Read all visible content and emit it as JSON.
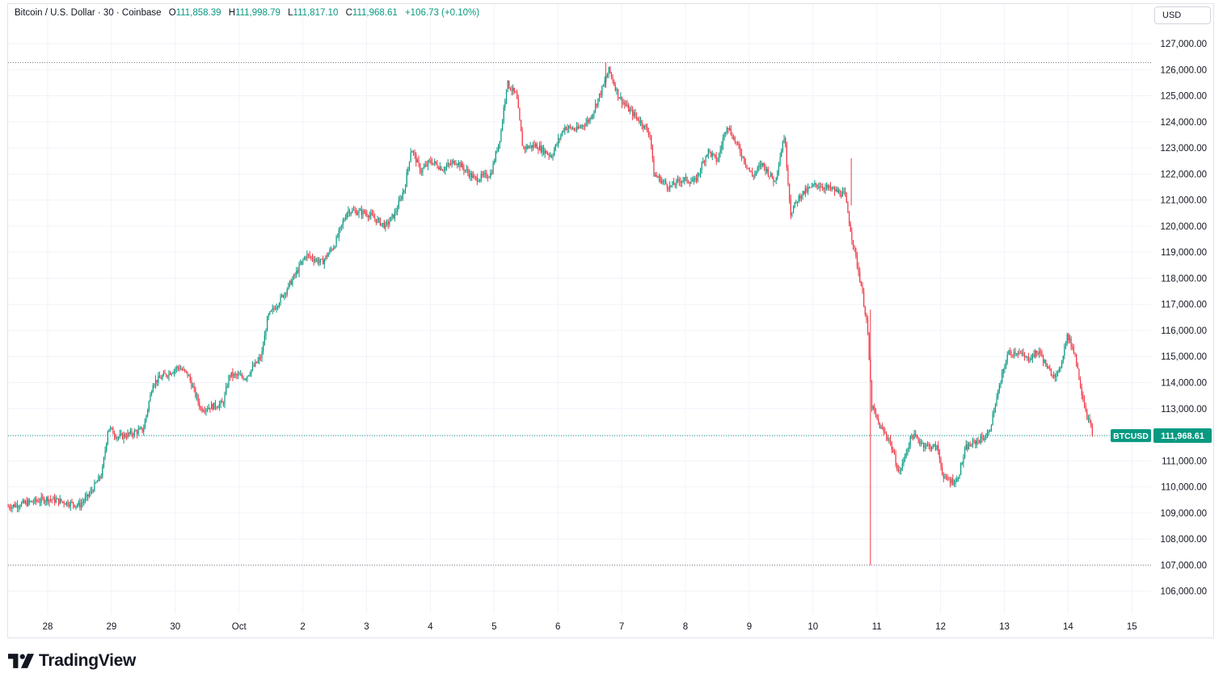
{
  "legend": {
    "symbol": "Bitcoin / U.S. Dollar · 30 · Coinbase",
    "o_label": "O",
    "o_value": "111,858.39",
    "h_label": "H",
    "h_value": "111,998.79",
    "l_label": "L",
    "l_value": "111,817.10",
    "c_label": "C",
    "c_value": "111,968.61",
    "change": "+106.73 (+0.10%)"
  },
  "currency": "USD",
  "brand": "TradingView",
  "colors": {
    "up": "#089981",
    "down": "#f23645",
    "grid": "#f0f3fa",
    "text": "#131722"
  },
  "price_tag": {
    "ticker": "BTCUSD",
    "value": "111,968.61"
  },
  "chart_data": {
    "type": "candlestick",
    "title": "Bitcoin / U.S. Dollar · 30 · Coinbase",
    "interval": "30",
    "ylim": [
      105000,
      127600
    ],
    "y_ticks": [
      106000,
      107000,
      108000,
      109000,
      110000,
      111000,
      112000,
      113000,
      114000,
      115000,
      116000,
      117000,
      118000,
      119000,
      120000,
      121000,
      122000,
      123000,
      124000,
      125000,
      126000,
      127000
    ],
    "y_tick_labels": [
      "106,000.00",
      "107,000.00",
      "108,000.00",
      "109,000.00",
      "110,000.00",
      "111,000.00",
      "112,000.00",
      "113,000.00",
      "114,000.00",
      "115,000.00",
      "116,000.00",
      "117,000.00",
      "118,000.00",
      "119,000.00",
      "120,000.00",
      "121,000.00",
      "122,000.00",
      "123,000.00",
      "124,000.00",
      "125,000.00",
      "126,000.00",
      "127,000.00"
    ],
    "x_labels": [
      "28",
      "29",
      "30",
      "Oct",
      "2",
      "3",
      "4",
      "5",
      "6",
      "7",
      "8",
      "9",
      "10",
      "11",
      "12",
      "13",
      "14",
      "15"
    ],
    "x_label_days": [
      0,
      1,
      2,
      3,
      4,
      5,
      6,
      7,
      8,
      9,
      10,
      11,
      12,
      13,
      14,
      15,
      16,
      17
    ],
    "x_range_days": [
      -0.62,
      16.4
    ],
    "high_line": 126270,
    "low_line": 107000,
    "last_price": 111968.61,
    "close_path": [
      [
        -0.62,
        109250
      ],
      [
        -0.3,
        109400
      ],
      [
        0.0,
        109550
      ],
      [
        0.2,
        109450
      ],
      [
        0.5,
        109300
      ],
      [
        0.65,
        109700
      ],
      [
        0.85,
        110500
      ],
      [
        0.95,
        112300
      ],
      [
        1.1,
        111900
      ],
      [
        1.25,
        112000
      ],
      [
        1.5,
        112200
      ],
      [
        1.65,
        114000
      ],
      [
        1.85,
        114300
      ],
      [
        2.05,
        114600
      ],
      [
        2.2,
        114300
      ],
      [
        2.4,
        113000
      ],
      [
        2.6,
        113100
      ],
      [
        2.75,
        113200
      ],
      [
        2.85,
        114300
      ],
      [
        3.1,
        114200
      ],
      [
        3.35,
        115000
      ],
      [
        3.45,
        116500
      ],
      [
        3.65,
        117200
      ],
      [
        3.85,
        118000
      ],
      [
        4.05,
        118900
      ],
      [
        4.3,
        118600
      ],
      [
        4.5,
        119300
      ],
      [
        4.7,
        120600
      ],
      [
        5.0,
        120500
      ],
      [
        5.3,
        120000
      ],
      [
        5.45,
        120500
      ],
      [
        5.6,
        121500
      ],
      [
        5.7,
        123000
      ],
      [
        5.85,
        122100
      ],
      [
        6.0,
        122500
      ],
      [
        6.2,
        122200
      ],
      [
        6.4,
        122500
      ],
      [
        6.7,
        121800
      ],
      [
        6.95,
        122000
      ],
      [
        7.1,
        123500
      ],
      [
        7.2,
        125500
      ],
      [
        7.35,
        125000
      ],
      [
        7.45,
        123000
      ],
      [
        7.65,
        123100
      ],
      [
        7.9,
        122700
      ],
      [
        8.1,
        123800
      ],
      [
        8.3,
        123700
      ],
      [
        8.5,
        124100
      ],
      [
        8.7,
        125300
      ],
      [
        8.8,
        126000
      ],
      [
        8.95,
        125000
      ],
      [
        9.1,
        124500
      ],
      [
        9.3,
        124000
      ],
      [
        9.45,
        123500
      ],
      [
        9.5,
        122000
      ],
      [
        9.75,
        121500
      ],
      [
        9.95,
        121800
      ],
      [
        10.15,
        121700
      ],
      [
        10.35,
        122900
      ],
      [
        10.5,
        122500
      ],
      [
        10.65,
        123900
      ],
      [
        10.85,
        122900
      ],
      [
        11.05,
        121900
      ],
      [
        11.2,
        122400
      ],
      [
        11.4,
        121700
      ],
      [
        11.55,
        123500
      ],
      [
        11.65,
        120500
      ],
      [
        11.8,
        121200
      ],
      [
        12.05,
        121600
      ],
      [
        12.3,
        121400
      ],
      [
        12.5,
        121200
      ],
      [
        12.6,
        119700
      ],
      [
        12.75,
        117800
      ],
      [
        12.85,
        116200
      ],
      [
        12.92,
        113100
      ],
      [
        13.05,
        112300
      ],
      [
        13.2,
        111800
      ],
      [
        13.35,
        110500
      ],
      [
        13.55,
        112000
      ],
      [
        13.75,
        111600
      ],
      [
        13.95,
        111500
      ],
      [
        14.05,
        110300
      ],
      [
        14.25,
        110200
      ],
      [
        14.4,
        111500
      ],
      [
        14.6,
        111800
      ],
      [
        14.75,
        112000
      ],
      [
        14.9,
        113600
      ],
      [
        15.05,
        115100
      ],
      [
        15.2,
        115200
      ],
      [
        15.35,
        114900
      ],
      [
        15.55,
        115200
      ],
      [
        15.7,
        114400
      ],
      [
        15.85,
        114300
      ],
      [
        15.98,
        115800
      ],
      [
        16.1,
        115200
      ],
      [
        16.2,
        113800
      ],
      [
        16.3,
        112700
      ],
      [
        16.4,
        111968.61
      ]
    ],
    "wicks": [
      {
        "day": 12.9,
        "low": 107000,
        "high": 116800
      },
      {
        "day": 12.6,
        "low": 120800,
        "high": 122600
      },
      {
        "day": 8.75,
        "low": 125300,
        "high": 126270
      }
    ]
  }
}
